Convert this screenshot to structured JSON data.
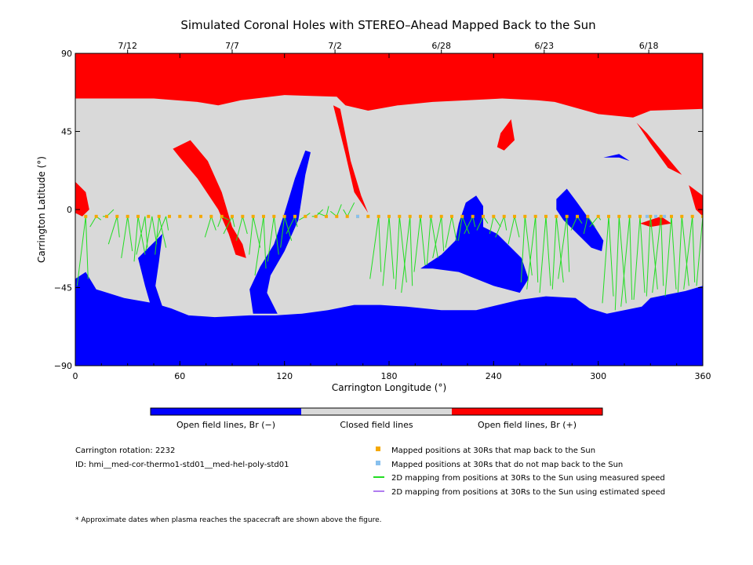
{
  "chart_data": {
    "type": "map",
    "title": "Simulated Coronal Holes with STEREO–Ahead Mapped Back to the Sun",
    "xlabel": "Carrington Longitude (°)",
    "ylabel": "Carrington Latitude (°)",
    "xlim": [
      0,
      360
    ],
    "ylim": [
      -90,
      90
    ],
    "x_ticks": [
      0,
      60,
      120,
      180,
      240,
      300,
      360
    ],
    "y_ticks": [
      {
        "value": 90,
        "label": "90"
      },
      {
        "value": 45,
        "label": "45"
      },
      {
        "value": 0,
        "label": "0"
      },
      {
        "value": -45,
        "label": "−45"
      },
      {
        "value": -90,
        "label": "−90"
      }
    ],
    "top_dates": [
      {
        "date": "7/12",
        "lon": 30
      },
      {
        "date": "7/7",
        "lon": 90
      },
      {
        "date": "7/2",
        "lon": 149
      },
      {
        "date": "6/28",
        "lon": 210
      },
      {
        "date": "6/23",
        "lon": 269
      },
      {
        "date": "6/18",
        "lon": 329
      }
    ],
    "colors": {
      "open_negative": "#0000ff",
      "closed": "#d9d9d9",
      "open_positive": "#ff0000",
      "mapped": "#f5a800",
      "unmapped": "#88c0ee",
      "measured": "#22dd22",
      "estimated": "#b07cf0"
    },
    "regions": {
      "north_polar_positive": [
        [
          0,
          90
        ],
        [
          360,
          90
        ],
        [
          360,
          58
        ],
        [
          330,
          57
        ],
        [
          320,
          53
        ],
        [
          300,
          55
        ],
        [
          275,
          62
        ],
        [
          265,
          63
        ],
        [
          245,
          64
        ],
        [
          225,
          63
        ],
        [
          205,
          62
        ],
        [
          185,
          60
        ],
        [
          168,
          57
        ],
        [
          155,
          60
        ],
        [
          150,
          65
        ],
        [
          120,
          66
        ],
        [
          95,
          63
        ],
        [
          82,
          60
        ],
        [
          70,
          62
        ],
        [
          45,
          64
        ],
        [
          20,
          64
        ],
        [
          0,
          64
        ]
      ],
      "south_polar_negative": [
        [
          0,
          -90
        ],
        [
          360,
          -90
        ],
        [
          360,
          -44
        ],
        [
          350,
          -47
        ],
        [
          340,
          -49
        ],
        [
          330,
          -51
        ],
        [
          325,
          -56
        ],
        [
          305,
          -60
        ],
        [
          295,
          -57
        ],
        [
          287,
          -51
        ],
        [
          270,
          -50
        ],
        [
          255,
          -52
        ],
        [
          230,
          -58
        ],
        [
          210,
          -58
        ],
        [
          190,
          -56
        ],
        [
          175,
          -55
        ],
        [
          160,
          -55
        ],
        [
          145,
          -58
        ],
        [
          130,
          -60
        ],
        [
          115,
          -61
        ],
        [
          100,
          -61
        ],
        [
          80,
          -62
        ],
        [
          65,
          -61
        ],
        [
          55,
          -57
        ],
        [
          45,
          -54
        ],
        [
          28,
          -51
        ],
        [
          12,
          -46
        ],
        [
          6,
          -36
        ],
        [
          0,
          -40
        ]
      ],
      "negative_features": [
        [
          [
            116,
            -60
          ],
          [
            110,
            -48
          ],
          [
            112,
            -38
          ],
          [
            120,
            -24
          ],
          [
            128,
            -6
          ],
          [
            132,
            20
          ],
          [
            135,
            33
          ],
          [
            132,
            34
          ],
          [
            126,
            18
          ],
          [
            120,
            -2
          ],
          [
            114,
            -20
          ],
          [
            106,
            -33
          ],
          [
            100,
            -46
          ],
          [
            102,
            -60
          ]
        ],
        [
          [
            36,
            -28
          ],
          [
            44,
            -20
          ],
          [
            50,
            -14
          ],
          [
            48,
            -30
          ],
          [
            46,
            -44
          ],
          [
            50,
            -56
          ],
          [
            44,
            -58
          ],
          [
            40,
            -44
          ]
        ],
        [
          [
            198,
            -34
          ],
          [
            210,
            -26
          ],
          [
            218,
            -18
          ],
          [
            220,
            -8
          ],
          [
            224,
            4
          ],
          [
            230,
            8
          ],
          [
            234,
            2
          ],
          [
            234,
            -10
          ],
          [
            242,
            -14
          ],
          [
            250,
            -22
          ],
          [
            256,
            -28
          ],
          [
            260,
            -40
          ],
          [
            255,
            -48
          ],
          [
            240,
            -44
          ],
          [
            220,
            -36
          ],
          [
            205,
            -34
          ]
        ],
        [
          [
            276,
            6
          ],
          [
            282,
            12
          ],
          [
            288,
            4
          ],
          [
            298,
            -10
          ],
          [
            303,
            -18
          ],
          [
            302,
            -24
          ],
          [
            296,
            -22
          ],
          [
            288,
            -14
          ],
          [
            280,
            -6
          ],
          [
            276,
            0
          ]
        ],
        [
          [
            303,
            30
          ],
          [
            312,
            30
          ],
          [
            318,
            28
          ],
          [
            312,
            32
          ]
        ]
      ],
      "positive_features": [
        [
          [
            66,
            40
          ],
          [
            76,
            28
          ],
          [
            84,
            10
          ],
          [
            90,
            -10
          ],
          [
            96,
            -20
          ],
          [
            98,
            -28
          ],
          [
            92,
            -26
          ],
          [
            88,
            -14
          ],
          [
            82,
            0
          ],
          [
            70,
            18
          ],
          [
            60,
            30
          ],
          [
            56,
            35
          ],
          [
            62,
            38
          ]
        ],
        [
          [
            148,
            60
          ],
          [
            155,
            32
          ],
          [
            160,
            10
          ],
          [
            168,
            -2
          ],
          [
            164,
            8
          ],
          [
            158,
            28
          ],
          [
            152,
            58
          ]
        ],
        [
          [
            244,
            44
          ],
          [
            250,
            52
          ],
          [
            252,
            40
          ],
          [
            246,
            34
          ],
          [
            242,
            36
          ]
        ],
        [
          [
            322,
            50
          ],
          [
            330,
            38
          ],
          [
            340,
            24
          ],
          [
            348,
            20
          ],
          [
            338,
            32
          ],
          [
            328,
            44
          ]
        ],
        [
          [
            352,
            14
          ],
          [
            360,
            8
          ],
          [
            360,
            -4
          ],
          [
            356,
            0
          ]
        ],
        [
          [
            324,
            -8
          ],
          [
            336,
            -4
          ],
          [
            342,
            -8
          ],
          [
            330,
            -10
          ]
        ],
        [
          [
            0,
            16
          ],
          [
            6,
            10
          ],
          [
            8,
            0
          ],
          [
            4,
            -4
          ],
          [
            0,
            -2
          ]
        ]
      ]
    },
    "mapped_longitudes": [
      6,
      12,
      18,
      24,
      30,
      36,
      42,
      48,
      54,
      60,
      66,
      72,
      78,
      84,
      90,
      96,
      102,
      108,
      114,
      120,
      126,
      132,
      138,
      144,
      150,
      156,
      162,
      168,
      174,
      180,
      186,
      192,
      198,
      204,
      210,
      216,
      222,
      228,
      234,
      240,
      246,
      252,
      258,
      264,
      270,
      276,
      282,
      288,
      294,
      300,
      306,
      312,
      318,
      324,
      330,
      336,
      342,
      348,
      354,
      360
    ],
    "unmapped_longitudes": [
      162,
      328,
      333,
      338
    ],
    "measured_lines": [
      {
        "lon": 6,
        "lat": -44
      },
      {
        "lon": 12,
        "lat": -10
      },
      {
        "lon": 18,
        "lat": -4
      },
      {
        "lon": 24,
        "lat": -20
      },
      {
        "lon": 30,
        "lat": -28
      },
      {
        "lon": 36,
        "lat": -30
      },
      {
        "lon": 40,
        "lat": -26
      },
      {
        "lon": 44,
        "lat": -24
      },
      {
        "lon": 48,
        "lat": -26
      },
      {
        "lon": 52,
        "lat": -16
      },
      {
        "lon": 78,
        "lat": -16
      },
      {
        "lon": 84,
        "lat": -10
      },
      {
        "lon": 90,
        "lat": -14
      },
      {
        "lon": 96,
        "lat": -18
      },
      {
        "lon": 102,
        "lat": -26
      },
      {
        "lon": 108,
        "lat": -38
      },
      {
        "lon": 114,
        "lat": -30
      },
      {
        "lon": 120,
        "lat": -22
      },
      {
        "lon": 126,
        "lat": -14
      },
      {
        "lon": 132,
        "lat": -6
      },
      {
        "lon": 138,
        "lat": -4
      },
      {
        "lon": 144,
        "lat": -2
      },
      {
        "lon": 150,
        "lat": -1
      },
      {
        "lon": 156,
        "lat": 0
      },
      {
        "lon": 174,
        "lat": -40
      },
      {
        "lon": 180,
        "lat": -44
      },
      {
        "lon": 186,
        "lat": -46
      },
      {
        "lon": 192,
        "lat": -48
      },
      {
        "lon": 198,
        "lat": -36
      },
      {
        "lon": 204,
        "lat": -32
      },
      {
        "lon": 210,
        "lat": -28
      },
      {
        "lon": 216,
        "lat": -22
      },
      {
        "lon": 222,
        "lat": -18
      },
      {
        "lon": 228,
        "lat": -14
      },
      {
        "lon": 234,
        "lat": -12
      },
      {
        "lon": 240,
        "lat": -14
      },
      {
        "lon": 246,
        "lat": -16
      },
      {
        "lon": 252,
        "lat": -20
      },
      {
        "lon": 258,
        "lat": -42
      },
      {
        "lon": 264,
        "lat": -46
      },
      {
        "lon": 270,
        "lat": -48
      },
      {
        "lon": 276,
        "lat": -46
      },
      {
        "lon": 282,
        "lat": -40
      },
      {
        "lon": 288,
        "lat": -12
      },
      {
        "lon": 294,
        "lat": -14
      },
      {
        "lon": 300,
        "lat": -10
      },
      {
        "lon": 306,
        "lat": -54
      },
      {
        "lon": 312,
        "lat": -58
      },
      {
        "lon": 318,
        "lat": -56
      },
      {
        "lon": 324,
        "lat": -52
      },
      {
        "lon": 330,
        "lat": -50
      },
      {
        "lon": 336,
        "lat": -48
      },
      {
        "lon": 342,
        "lat": -50
      },
      {
        "lon": 348,
        "lat": -48
      },
      {
        "lon": 354,
        "lat": -46
      },
      {
        "lon": 360,
        "lat": -44
      }
    ],
    "colorbar": {
      "labels": [
        "Open field lines, Br (−)",
        "Closed field lines",
        "Open field lines, Br (+)"
      ]
    },
    "info": {
      "rotation": "Carrington rotation: 2232",
      "id": "ID: hmi__med-cor-thermo1-std01__med-hel-poly-std01"
    },
    "legend": [
      {
        "label": "Mapped positions at 30Rs that map back to the Sun",
        "symbol": "square",
        "color": "#f5a800"
      },
      {
        "label": "Mapped positions at 30Rs that do not map back to the Sun",
        "symbol": "square",
        "color": "#88c0ee"
      },
      {
        "label": "2D mapping from positions at 30Rs to the Sun using measured speed",
        "symbol": "line",
        "color": "#22dd22"
      },
      {
        "label": "2D mapping from positions at 30Rs to the Sun using estimated speed",
        "symbol": "line",
        "color": "#b07cf0"
      }
    ],
    "footnote": "* Approximate dates when plasma reaches the spacecraft are shown above the figure."
  }
}
